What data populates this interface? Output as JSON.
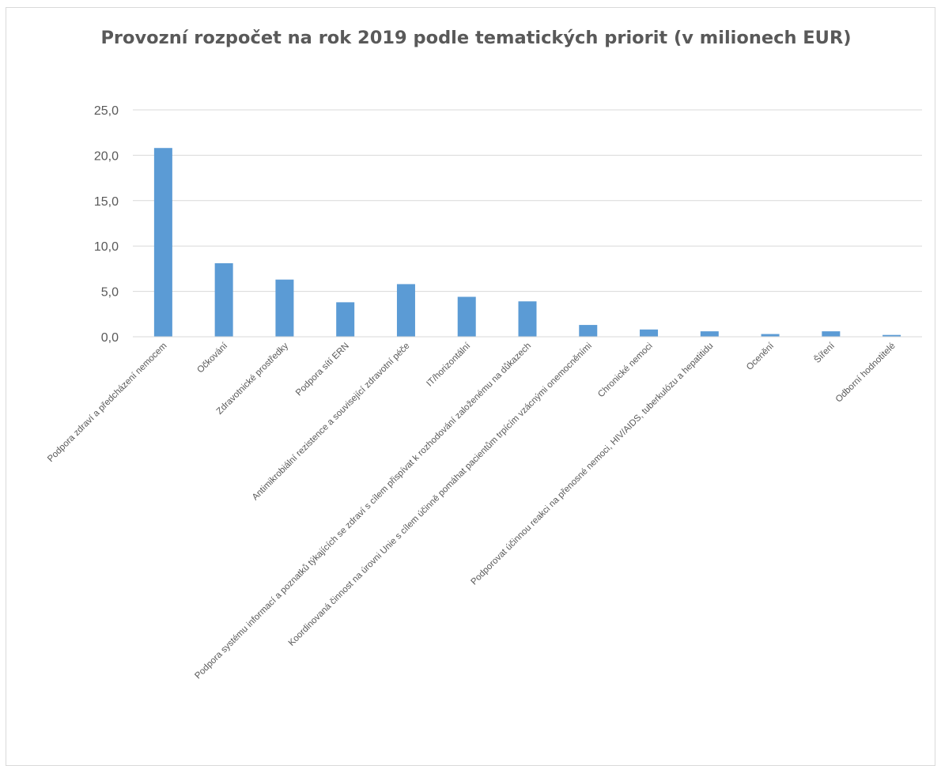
{
  "chart_data": {
    "type": "bar",
    "title": "Provozní rozpočet na rok 2019 podle tematických priorit (v milionech EUR)",
    "xlabel": "",
    "ylabel": "",
    "ylim": [
      0,
      25
    ],
    "y_ticks": [
      "0,0",
      "5,0",
      "10,0",
      "15,0",
      "20,0",
      "25,0"
    ],
    "grid": true,
    "legend": "none",
    "bar_color": "#5b9bd5",
    "categories": [
      "Podpora zdraví a předcházení nemocem",
      "Očkování",
      "Zdravotnické prostředky",
      "Podpora sítí ERN",
      "Antimikrobiální rezistence a související zdravotní péče",
      "IT/horizontální",
      "Podpora systému informací a poznatků týkajících se zdraví s cílem přispívat k rozhodování založenému na důkazech",
      "Koordinovaná činnost na úrovni Unie s cílem účinně pomáhat pacientům trpícím vzácnými onemocněními",
      "Chronické nemoci",
      "Podporovat účinnou reakci na přenosné nemoci, HIV/AIDS, tuberkulózu a hepatitidu",
      "Ocenění",
      "Šíření",
      "Odborní hodnotitelé"
    ],
    "values": [
      20.8,
      8.1,
      6.3,
      3.8,
      5.8,
      4.4,
      3.9,
      1.3,
      0.8,
      0.6,
      0.3,
      0.6,
      0.2
    ]
  }
}
